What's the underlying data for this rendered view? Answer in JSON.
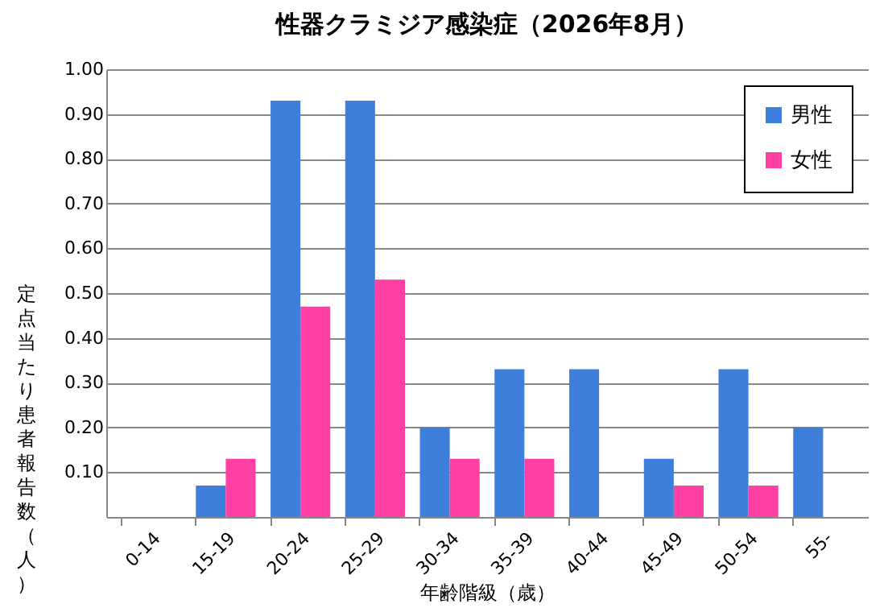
{
  "chart_data": {
    "type": "bar",
    "title": "性器クラミジア感染症（2026年8月）",
    "xlabel": "年齢階級（歳）",
    "ylabel": "定点当たり患者報告数（人）",
    "categories": [
      "0-14",
      "15-19",
      "20-24",
      "25-29",
      "30-34",
      "35-39",
      "40-44",
      "45-49",
      "50-54",
      "55-"
    ],
    "series": [
      {
        "name": "男性",
        "color": "#3f7fdc",
        "values": [
          0,
          0.07,
          0.93,
          0.93,
          0.2,
          0.33,
          0.33,
          0.13,
          0.33,
          0.2
        ]
      },
      {
        "name": "女性",
        "color": "#ff3fa3",
        "values": [
          0,
          0.13,
          0.47,
          0.53,
          0.13,
          0.13,
          0,
          0.07,
          0.07,
          0
        ]
      }
    ],
    "ylim": [
      0,
      1
    ],
    "yticks": [
      {
        "value": 0,
        "label": null
      },
      {
        "value": 0.1,
        "label": "0.10"
      },
      {
        "value": 0.2,
        "label": "0.20"
      },
      {
        "value": 0.3,
        "label": "0.30"
      },
      {
        "value": 0.4,
        "label": "0.40"
      },
      {
        "value": 0.5,
        "label": "0.50"
      },
      {
        "value": 0.6,
        "label": "0.60"
      },
      {
        "value": 0.7,
        "label": "0.70"
      },
      {
        "value": 0.8,
        "label": "0.80"
      },
      {
        "value": 0.9,
        "label": "0.90"
      },
      {
        "value": 1,
        "label": "1.00"
      }
    ],
    "grid": true,
    "legend": "top right"
  }
}
